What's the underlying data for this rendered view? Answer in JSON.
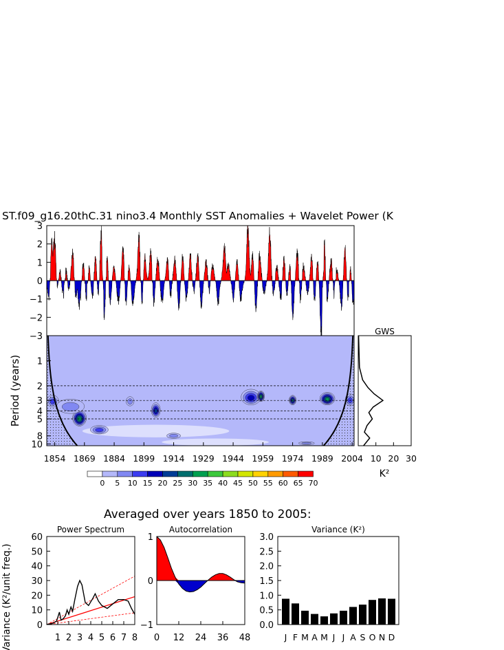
{
  "title": "ST.f09_g16.20thC.31 nino3.4 Monthly SST Anomalies + Wavelet Power (K",
  "colors": {
    "positive": "#ff0000",
    "negative": "#0000cc",
    "coi_fill": "#b4b8fa"
  },
  "chart_data": [
    {
      "type": "area",
      "name": "sst-anomaly-timeseries",
      "ylim": [
        -3,
        3
      ],
      "yticks": [
        3,
        2,
        1,
        0,
        -1,
        -2,
        -3
      ],
      "ytick_labels": [
        "3",
        "2",
        "1",
        "0",
        "−1",
        "−2",
        "−3"
      ],
      "x_range": [
        1850,
        2005
      ],
      "peaks": [
        {
          "x": 1852.5,
          "y": 1.9
        },
        {
          "x": 1854.0,
          "y": 2.7
        },
        {
          "x": 1856.5,
          "y": 0.8
        },
        {
          "x": 1859.5,
          "y": 1.0
        },
        {
          "x": 1863.0,
          "y": 1.6
        },
        {
          "x": 1868.3,
          "y": 1.0
        },
        {
          "x": 1871.0,
          "y": 0.9
        },
        {
          "x": 1874.5,
          "y": 1.1
        },
        {
          "x": 1877.5,
          "y": 2.4
        },
        {
          "x": 1880.5,
          "y": 1.1
        },
        {
          "x": 1884.0,
          "y": 0.8
        },
        {
          "x": 1888.5,
          "y": 1.5
        },
        {
          "x": 1891.5,
          "y": 0.7
        },
        {
          "x": 1896.5,
          "y": 2.1
        },
        {
          "x": 1899.5,
          "y": 1.2
        },
        {
          "x": 1902.5,
          "y": 1.5
        },
        {
          "x": 1906.0,
          "y": 1.3
        },
        {
          "x": 1911.0,
          "y": 1.1
        },
        {
          "x": 1914.5,
          "y": 1.4
        },
        {
          "x": 1918.5,
          "y": 1.1
        },
        {
          "x": 1922.5,
          "y": 1.6
        },
        {
          "x": 1926.0,
          "y": 1.3
        },
        {
          "x": 1930.5,
          "y": 1.2
        },
        {
          "x": 1933.5,
          "y": 1.0
        },
        {
          "x": 1939.5,
          "y": 1.8
        },
        {
          "x": 1941.5,
          "y": 1.0
        },
        {
          "x": 1946.0,
          "y": 0.9
        },
        {
          "x": 1951.5,
          "y": 2.7
        },
        {
          "x": 1953.8,
          "y": 1.2
        },
        {
          "x": 1957.5,
          "y": 1.5
        },
        {
          "x": 1962.5,
          "y": 2.4
        },
        {
          "x": 1966.0,
          "y": 0.9
        },
        {
          "x": 1969.5,
          "y": 1.4
        },
        {
          "x": 1972.5,
          "y": 0.8
        },
        {
          "x": 1976.5,
          "y": 1.6
        },
        {
          "x": 1979.5,
          "y": 1.0
        },
        {
          "x": 1983.5,
          "y": 1.2
        },
        {
          "x": 1986.5,
          "y": 0.9
        },
        {
          "x": 1990.0,
          "y": 2.1
        },
        {
          "x": 1993.5,
          "y": 1.3
        },
        {
          "x": 1996.0,
          "y": 1.0
        },
        {
          "x": 2000.5,
          "y": 1.6
        },
        {
          "x": 2003.0,
          "y": 0.7
        }
      ],
      "troughs": [
        {
          "x": 1851.0,
          "y": -1.0
        },
        {
          "x": 1855.5,
          "y": -0.8
        },
        {
          "x": 1858.5,
          "y": -1.2
        },
        {
          "x": 1861.0,
          "y": -0.6
        },
        {
          "x": 1864.5,
          "y": -0.9
        },
        {
          "x": 1866.5,
          "y": -1.6
        },
        {
          "x": 1870.0,
          "y": -1.1
        },
        {
          "x": 1873.0,
          "y": -0.9
        },
        {
          "x": 1876.0,
          "y": -0.7
        },
        {
          "x": 1879.0,
          "y": -1.8
        },
        {
          "x": 1882.0,
          "y": -1.1
        },
        {
          "x": 1886.0,
          "y": -1.2
        },
        {
          "x": 1890.0,
          "y": -1.2
        },
        {
          "x": 1893.5,
          "y": -1.3
        },
        {
          "x": 1898.0,
          "y": -1.1
        },
        {
          "x": 1904.0,
          "y": -1.2
        },
        {
          "x": 1908.0,
          "y": -1.2
        },
        {
          "x": 1912.5,
          "y": -0.9
        },
        {
          "x": 1916.5,
          "y": -1.3
        },
        {
          "x": 1920.5,
          "y": -1.0
        },
        {
          "x": 1924.0,
          "y": -0.8
        },
        {
          "x": 1928.0,
          "y": -1.2
        },
        {
          "x": 1932.0,
          "y": -0.8
        },
        {
          "x": 1936.5,
          "y": -1.1
        },
        {
          "x": 1944.0,
          "y": -0.9
        },
        {
          "x": 1948.0,
          "y": -1.1
        },
        {
          "x": 1955.5,
          "y": -1.4
        },
        {
          "x": 1959.5,
          "y": -0.8
        },
        {
          "x": 1964.5,
          "y": -0.9
        },
        {
          "x": 1968.0,
          "y": -1.1
        },
        {
          "x": 1971.0,
          "y": -0.8
        },
        {
          "x": 1974.0,
          "y": -1.7
        },
        {
          "x": 1978.0,
          "y": -1.2
        },
        {
          "x": 1981.5,
          "y": -0.8
        },
        {
          "x": 1985.0,
          "y": -1.0
        },
        {
          "x": 1988.5,
          "y": -2.9
        },
        {
          "x": 1991.5,
          "y": -1.1
        },
        {
          "x": 1995.0,
          "y": -1.2
        },
        {
          "x": 1998.5,
          "y": -1.3
        },
        {
          "x": 2002.0,
          "y": -1.0
        },
        {
          "x": 2004.5,
          "y": -1.1
        }
      ]
    },
    {
      "type": "heatmap",
      "name": "wavelet-power",
      "ylabel": "Period (years)",
      "xticks": [
        1854,
        1869,
        1884,
        1899,
        1914,
        1929,
        1944,
        1959,
        1974,
        1989,
        2004
      ],
      "yticks": [
        1,
        2,
        3,
        4,
        5,
        8,
        10
      ],
      "dashed_periods": [
        2,
        3,
        4,
        5
      ],
      "x_range": [
        1850,
        2005
      ],
      "period_range": [
        0.5,
        10.5
      ],
      "blobs": [
        {
          "x": 1853.0,
          "p": 3.1,
          "rx": 3.0,
          "rp": 0.5,
          "level": 15
        },
        {
          "x": 1866.5,
          "p": 5.0,
          "rx": 3.5,
          "rp": 1.1,
          "level": 35
        },
        {
          "x": 1862.0,
          "p": 3.6,
          "rx": 7.0,
          "rp": 0.7,
          "level": 10
        },
        {
          "x": 1876.5,
          "p": 6.8,
          "rx": 4.5,
          "rp": 0.8,
          "level": 15
        },
        {
          "x": 1892.0,
          "p": 3.1,
          "rx": 2.0,
          "rp": 0.4,
          "level": 10
        },
        {
          "x": 1905.0,
          "p": 4.0,
          "rx": 2.3,
          "rp": 0.8,
          "level": 25
        },
        {
          "x": 1914.0,
          "p": 8.0,
          "rx": 3.5,
          "rp": 0.6,
          "level": 10
        },
        {
          "x": 1953.0,
          "p": 2.8,
          "rx": 5.0,
          "rp": 0.6,
          "level": 20
        },
        {
          "x": 1958.0,
          "p": 2.7,
          "rx": 1.8,
          "rp": 0.4,
          "level": 35
        },
        {
          "x": 1974.0,
          "p": 3.0,
          "rx": 1.8,
          "rp": 0.4,
          "level": 30
        },
        {
          "x": 1991.5,
          "p": 2.9,
          "rx": 3.8,
          "rp": 0.5,
          "level": 35
        },
        {
          "x": 1981.0,
          "p": 9.8,
          "rx": 4.0,
          "rp": 0.4,
          "level": 10
        },
        {
          "x": 2003.0,
          "p": 3.0,
          "rx": 2.5,
          "rp": 0.5,
          "level": 15
        }
      ]
    },
    {
      "type": "line",
      "name": "global-wavelet-spectrum",
      "title": "GWS",
      "xlabel": "K²",
      "xticks": [
        10,
        20,
        30
      ],
      "xlim": [
        0,
        30
      ],
      "points": [
        {
          "p": 0.5,
          "v": 0.2
        },
        {
          "p": 1.2,
          "v": 0.7
        },
        {
          "p": 1.7,
          "v": 2.5
        },
        {
          "p": 2.1,
          "v": 5.5
        },
        {
          "p": 2.5,
          "v": 9.0
        },
        {
          "p": 3.0,
          "v": 14.0
        },
        {
          "p": 3.6,
          "v": 8.5
        },
        {
          "p": 4.2,
          "v": 6.0
        },
        {
          "p": 5.0,
          "v": 8.0
        },
        {
          "p": 6.0,
          "v": 5.0
        },
        {
          "p": 7.2,
          "v": 3.5
        },
        {
          "p": 8.5,
          "v": 6.5
        },
        {
          "p": 10.5,
          "v": 3.0
        }
      ]
    },
    {
      "type": "bar",
      "name": "wavelet-power-colorbar",
      "labels": [
        "0",
        "5",
        "10",
        "15",
        "20",
        "25",
        "30",
        "35",
        "40",
        "45",
        "50",
        "55",
        "60",
        "65",
        "70"
      ],
      "colors": [
        "#ffffff",
        "#b4b8fa",
        "#8188f2",
        "#3c3cf0",
        "#0000b8",
        "#003c96",
        "#006e6e",
        "#00a050",
        "#3cc83c",
        "#8cdc1e",
        "#d2e600",
        "#ffd200",
        "#ff9b00",
        "#ff5a00",
        "#ff0000"
      ]
    },
    {
      "type": "line",
      "name": "power-spectrum",
      "title": "Power Spectrum",
      "ylabel": "Variance (K²/unit freq.)",
      "ylim": [
        0,
        60
      ],
      "yticks": [
        0,
        10,
        20,
        30,
        40,
        50,
        60
      ],
      "xlim": [
        0,
        8
      ],
      "xticks": [
        1,
        2,
        3,
        4,
        5,
        6,
        7,
        8
      ],
      "spectrum": [
        {
          "x": 0.0,
          "y": 0.0
        },
        {
          "x": 0.3,
          "y": 0.5
        },
        {
          "x": 0.6,
          "y": 1.0
        },
        {
          "x": 0.9,
          "y": 2.5
        },
        {
          "x": 1.15,
          "y": 8.5
        },
        {
          "x": 1.3,
          "y": 3.0
        },
        {
          "x": 1.5,
          "y": 4.0
        },
        {
          "x": 1.7,
          "y": 6.0
        },
        {
          "x": 1.85,
          "y": 10.0
        },
        {
          "x": 2.0,
          "y": 7.0
        },
        {
          "x": 2.2,
          "y": 12.0
        },
        {
          "x": 2.35,
          "y": 9.0
        },
        {
          "x": 2.55,
          "y": 17.0
        },
        {
          "x": 2.8,
          "y": 26.0
        },
        {
          "x": 3.0,
          "y": 30.0
        },
        {
          "x": 3.2,
          "y": 27.0
        },
        {
          "x": 3.5,
          "y": 15.0
        },
        {
          "x": 3.8,
          "y": 13.0
        },
        {
          "x": 4.2,
          "y": 18.0
        },
        {
          "x": 4.4,
          "y": 21.0
        },
        {
          "x": 4.7,
          "y": 16.0
        },
        {
          "x": 5.0,
          "y": 13.0
        },
        {
          "x": 5.5,
          "y": 11.0
        },
        {
          "x": 6.0,
          "y": 14.0
        },
        {
          "x": 6.5,
          "y": 17.0
        },
        {
          "x": 7.0,
          "y": 17.0
        },
        {
          "x": 7.4,
          "y": 16.0
        },
        {
          "x": 7.7,
          "y": 11.0
        },
        {
          "x": 8.0,
          "y": 7.0
        }
      ],
      "red_noise": [
        {
          "x": 0.0,
          "y": 0.0
        },
        {
          "x": 8.0,
          "y": 19.0
        }
      ],
      "confidence_upper": [
        {
          "x": 0.0,
          "y": 0.0
        },
        {
          "x": 8.0,
          "y": 33.0
        }
      ],
      "confidence_lower": [
        {
          "x": 0.0,
          "y": 0.0
        },
        {
          "x": 8.0,
          "y": 8.0
        }
      ]
    },
    {
      "type": "area",
      "name": "autocorrelation",
      "title": "Autocorrelation",
      "ylim": [
        -1,
        1
      ],
      "yticks": [
        -1,
        0,
        1
      ],
      "xlim": [
        0,
        48
      ],
      "xticks": [
        0,
        12,
        24,
        36,
        48
      ],
      "points": [
        {
          "x": 0,
          "y": 1.0
        },
        {
          "x": 2,
          "y": 0.92
        },
        {
          "x": 4,
          "y": 0.75
        },
        {
          "x": 6,
          "y": 0.52
        },
        {
          "x": 8,
          "y": 0.28
        },
        {
          "x": 10,
          "y": 0.08
        },
        {
          "x": 12,
          "y": -0.08
        },
        {
          "x": 14,
          "y": -0.18
        },
        {
          "x": 16,
          "y": -0.24
        },
        {
          "x": 18,
          "y": -0.26
        },
        {
          "x": 20,
          "y": -0.25
        },
        {
          "x": 22,
          "y": -0.21
        },
        {
          "x": 24,
          "y": -0.15
        },
        {
          "x": 26,
          "y": -0.07
        },
        {
          "x": 28,
          "y": 0.01
        },
        {
          "x": 30,
          "y": 0.08
        },
        {
          "x": 32,
          "y": 0.13
        },
        {
          "x": 34,
          "y": 0.16
        },
        {
          "x": 36,
          "y": 0.16
        },
        {
          "x": 38,
          "y": 0.13
        },
        {
          "x": 40,
          "y": 0.08
        },
        {
          "x": 42,
          "y": 0.02
        },
        {
          "x": 44,
          "y": -0.03
        },
        {
          "x": 46,
          "y": -0.05
        },
        {
          "x": 48,
          "y": -0.06
        }
      ]
    },
    {
      "type": "bar",
      "name": "monthly-variance",
      "title": "Variance (K²)",
      "ylim": [
        0,
        3.0
      ],
      "yticks": [
        0.0,
        0.5,
        1.0,
        1.5,
        2.0,
        2.5,
        3.0
      ],
      "ytick_labels": [
        "0.0",
        "0.5",
        "1.0",
        "1.5",
        "2.0",
        "2.5",
        "3.0"
      ],
      "categories": [
        "J",
        "F",
        "M",
        "A",
        "M",
        "J",
        "J",
        "A",
        "S",
        "O",
        "N",
        "D"
      ],
      "values": [
        0.88,
        0.72,
        0.47,
        0.36,
        0.28,
        0.38,
        0.47,
        0.6,
        0.68,
        0.84,
        0.89,
        0.88
      ]
    }
  ],
  "lower_title": "Averaged over years 1850 to 2005:"
}
